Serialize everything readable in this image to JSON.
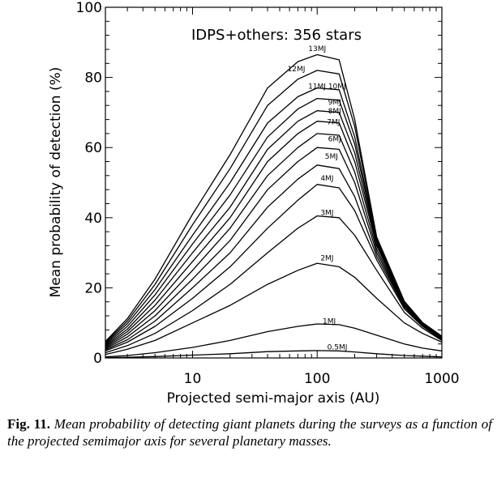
{
  "chart_data": {
    "type": "line",
    "annotation": "IDPS+others: 356 stars",
    "xlabel": "Projected semi-major axis (AU)",
    "ylabel": "Mean probability of detection (%)",
    "xscale": "log",
    "xlim": [
      2,
      1000
    ],
    "ylim": [
      0,
      100
    ],
    "xticks": [
      10,
      100,
      1000
    ],
    "xtick_labels": [
      "10",
      "100",
      "1000"
    ],
    "yticks": [
      0,
      20,
      40,
      60,
      80,
      100
    ],
    "ytick_labels": [
      "0",
      "20",
      "40",
      "60",
      "80",
      "100"
    ],
    "grid": false,
    "x": [
      2,
      3,
      5,
      10,
      20,
      40,
      70,
      100,
      150,
      200,
      300,
      500,
      700,
      1000
    ],
    "series": [
      {
        "name": "0.5MJ",
        "values": [
          0.1,
          0.2,
          0.4,
          0.8,
          1.2,
          1.8,
          2.0,
          2.1,
          2.0,
          1.7,
          1.2,
          0.7,
          0.5,
          0.3
        ]
      },
      {
        "name": "1MJ",
        "values": [
          0.3,
          0.7,
          1.5,
          3.0,
          5.0,
          7.5,
          9.0,
          9.7,
          9.5,
          8.5,
          6.5,
          4.0,
          2.8,
          2.0
        ]
      },
      {
        "name": "2MJ",
        "values": [
          1.0,
          2.5,
          5.0,
          10.0,
          15.0,
          21.0,
          25.0,
          27.0,
          26.0,
          23.0,
          17.0,
          10.0,
          7.0,
          4.5
        ]
      },
      {
        "name": "3MJ",
        "values": [
          1.5,
          3.5,
          7.0,
          13.5,
          21.0,
          30.0,
          37.0,
          40.5,
          40.0,
          35.0,
          25.0,
          13.0,
          8.5,
          5.0
        ]
      },
      {
        "name": "4MJ",
        "values": [
          2.0,
          4.5,
          9.0,
          17.0,
          26.0,
          37.0,
          45.0,
          49.5,
          48.5,
          42.0,
          28.0,
          14.0,
          9.0,
          5.2
        ]
      },
      {
        "name": "5MJ",
        "values": [
          2.3,
          5.2,
          10.5,
          20.0,
          30.0,
          43.0,
          51.0,
          55.0,
          54.0,
          46.0,
          29.0,
          14.5,
          9.2,
          5.4
        ]
      },
      {
        "name": "6MJ",
        "values": [
          2.6,
          6.0,
          12.0,
          22.5,
          33.5,
          48.0,
          56.0,
          60.0,
          59.5,
          50.0,
          30.0,
          14.8,
          9.4,
          5.5
        ]
      },
      {
        "name": "7MJ",
        "values": [
          2.9,
          6.8,
          13.5,
          25.0,
          37.0,
          52.0,
          60.0,
          64.0,
          63.5,
          53.0,
          31.0,
          15.0,
          9.5,
          5.6
        ]
      },
      {
        "name": "8MJ",
        "values": [
          3.2,
          7.5,
          15.0,
          27.5,
          40.0,
          56.0,
          64.0,
          67.5,
          67.0,
          56.0,
          32.0,
          15.2,
          9.6,
          5.7
        ]
      },
      {
        "name": "9MJ",
        "values": [
          3.5,
          8.2,
          16.5,
          30.0,
          43.0,
          59.5,
          67.5,
          70.5,
          70.0,
          58.5,
          32.5,
          15.4,
          9.7,
          5.8
        ]
      },
      {
        "name": "10MJ",
        "values": [
          3.8,
          9.0,
          18.0,
          32.5,
          46.5,
          63.0,
          71.0,
          74.0,
          73.5,
          61.0,
          33.0,
          15.6,
          9.8,
          5.9
        ]
      },
      {
        "name": "11MJ",
        "values": [
          4.1,
          9.8,
          19.5,
          35.0,
          50.0,
          67.0,
          74.5,
          77.0,
          76.5,
          63.0,
          33.5,
          15.8,
          9.9,
          6.0
        ]
      },
      {
        "name": "12MJ",
        "values": [
          4.4,
          10.5,
          21.0,
          38.0,
          54.0,
          72.0,
          79.5,
          82.0,
          81.0,
          66.0,
          34.0,
          16.0,
          10.0,
          6.1
        ]
      },
      {
        "name": "13MJ",
        "values": [
          4.7,
          11.2,
          22.5,
          41.0,
          58.0,
          77.0,
          84.5,
          86.5,
          85.0,
          68.0,
          34.5,
          16.2,
          10.1,
          6.2
        ]
      }
    ],
    "curve_labels": [
      {
        "text": "13MJ",
        "x": 100,
        "y": 87.5
      },
      {
        "text": "12MJ",
        "x": 68,
        "y": 81.8
      },
      {
        "text": "11MJ 10MJ",
        "x": 120,
        "y": 76.8
      },
      {
        "text": "9MJ",
        "x": 138,
        "y": 72.3
      },
      {
        "text": "8MJ",
        "x": 138,
        "y": 69.8
      },
      {
        "text": "7MJ",
        "x": 135,
        "y": 66.6
      },
      {
        "text": "6MJ",
        "x": 138,
        "y": 61.8
      },
      {
        "text": "5MJ",
        "x": 130,
        "y": 56.8
      },
      {
        "text": "4MJ",
        "x": 120,
        "y": 50.6
      },
      {
        "text": "3MJ",
        "x": 120,
        "y": 40.8
      },
      {
        "text": "2MJ",
        "x": 120,
        "y": 27.8
      },
      {
        "text": "1MJ",
        "x": 125,
        "y": 9.8
      },
      {
        "text": "0.5MJ",
        "x": 145,
        "y": 2.4
      }
    ]
  },
  "caption": {
    "number": "Fig. 11.",
    "text": "Mean probability of detecting giant planets during the surveys as a function of the projected semimajor axis for several planetary masses."
  }
}
